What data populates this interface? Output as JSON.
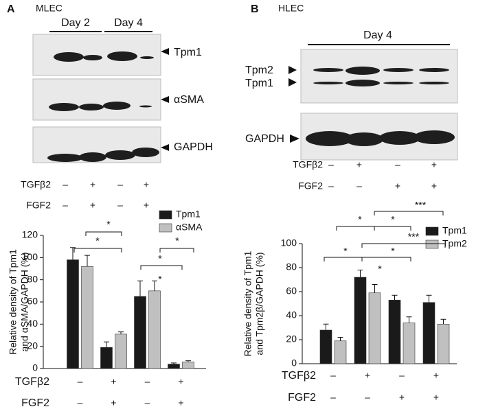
{
  "figure": {
    "panel_a": {
      "label": "A",
      "cell": "MLEC",
      "days": [
        "Day 2",
        "Day 4"
      ],
      "bands": [
        "Tpm1",
        "αSMA",
        "GAPDH"
      ],
      "treatments": [
        {
          "name": "TGFβ2",
          "signs": [
            "–",
            "+",
            "–",
            "+"
          ]
        },
        {
          "name": "FGF2",
          "signs": [
            "–",
            "+",
            "–",
            "+"
          ]
        }
      ]
    },
    "panel_b": {
      "label": "B",
      "cell": "HLEC",
      "days": [
        "Day 4"
      ],
      "bands": [
        "Tpm2",
        "Tpm1",
        "GAPDH"
      ],
      "treatments": [
        {
          "name": "TGFβ2",
          "signs": [
            "–",
            "+",
            "–",
            "+"
          ]
        },
        {
          "name": "FGF2",
          "signs": [
            "–",
            "–",
            "+",
            "+"
          ]
        }
      ]
    }
  },
  "chart_data": [
    {
      "type": "bar",
      "ylabel": [
        "Relative density of Tpm1",
        "and αSMA/GAPDH (%)"
      ],
      "categories": [
        null,
        null,
        null,
        null
      ],
      "conditions": [
        {
          "name": "TGFβ2",
          "signs": [
            "–",
            "+",
            "–",
            "+"
          ]
        },
        {
          "name": "FGF2",
          "signs": [
            "–",
            "+",
            "–",
            "+"
          ]
        }
      ],
      "series": [
        {
          "name": "Tpm1",
          "color": "#1a1a1a",
          "values": [
            98,
            19,
            65,
            4
          ],
          "errors": [
            11,
            5,
            14,
            1
          ]
        },
        {
          "name": "αSMA",
          "color": "#c0c0c0",
          "values": [
            92,
            31,
            70,
            6
          ],
          "errors": [
            10,
            2,
            9,
            1
          ]
        }
      ],
      "ylim": [
        0,
        120
      ],
      "yticks": [
        0,
        20,
        40,
        60,
        80,
        100,
        120
      ],
      "annotations": [
        "*",
        "*",
        "*",
        "*",
        "*"
      ],
      "legend": "upper right"
    },
    {
      "type": "bar",
      "ylabel": [
        "Relative density of Tpm1",
        "and Tpm2β/GAPDH (%)"
      ],
      "categories": [
        null,
        null,
        null,
        null
      ],
      "conditions": [
        {
          "name": "TGFβ2",
          "signs": [
            "–",
            "+",
            "–",
            "+"
          ]
        },
        {
          "name": "FGF2",
          "signs": [
            "–",
            "–",
            "+",
            "+"
          ]
        }
      ],
      "series": [
        {
          "name": "Tpm1",
          "color": "#1a1a1a",
          "values": [
            28,
            72,
            53,
            51
          ],
          "errors": [
            5,
            6,
            4,
            6
          ]
        },
        {
          "name": "Tpm2",
          "color": "#c0c0c0",
          "values": [
            19,
            59,
            34,
            33
          ],
          "errors": [
            3,
            7,
            5,
            4
          ]
        }
      ],
      "ylim": [
        0,
        100
      ],
      "yticks": [
        0,
        20,
        40,
        60,
        80,
        100
      ],
      "annotations": [
        "***",
        "*",
        "*",
        "***",
        "*",
        "*",
        "*"
      ],
      "legend": "upper right"
    }
  ]
}
